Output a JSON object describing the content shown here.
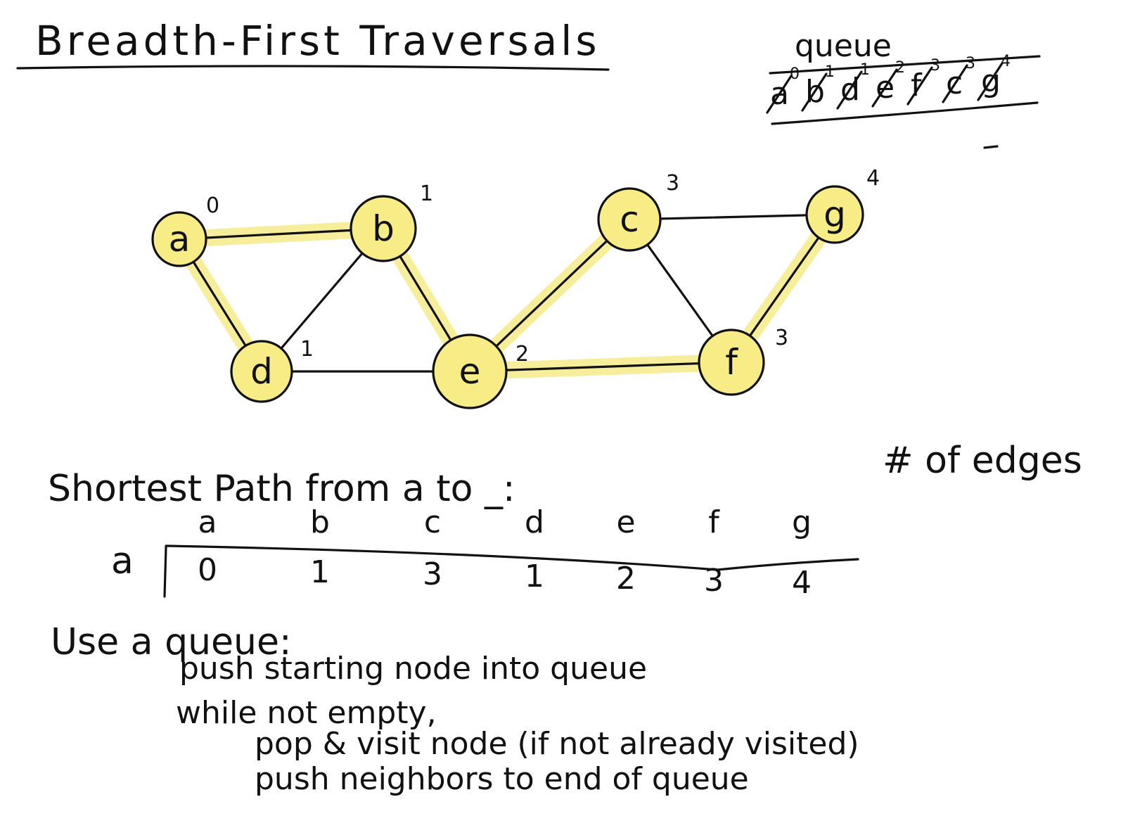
{
  "title": "Breadth-First Traversals",
  "queue": {
    "label": "queue",
    "items": [
      {
        "node": "a",
        "dist": "0"
      },
      {
        "node": "b",
        "dist": "1"
      },
      {
        "node": "d",
        "dist": "1"
      },
      {
        "node": "e",
        "dist": "2"
      },
      {
        "node": "f",
        "dist": "3"
      },
      {
        "node": "c",
        "dist": "3"
      },
      {
        "node": "g",
        "dist": "4"
      }
    ]
  },
  "graph": {
    "nodes": [
      {
        "id": "a",
        "label": "a",
        "dist": "0"
      },
      {
        "id": "b",
        "label": "b",
        "dist": "1"
      },
      {
        "id": "c",
        "label": "c",
        "dist": "3"
      },
      {
        "id": "g",
        "label": "g",
        "dist": "4"
      },
      {
        "id": "d",
        "label": "d",
        "dist": "1"
      },
      {
        "id": "e",
        "label": "e",
        "dist": "2"
      },
      {
        "id": "f",
        "label": "f",
        "dist": "3"
      }
    ],
    "edges": [
      {
        "from": "a",
        "to": "b",
        "highlighted": true
      },
      {
        "from": "a",
        "to": "d",
        "highlighted": true
      },
      {
        "from": "b",
        "to": "d",
        "highlighted": false
      },
      {
        "from": "b",
        "to": "e",
        "highlighted": true
      },
      {
        "from": "d",
        "to": "e",
        "highlighted": false
      },
      {
        "from": "e",
        "to": "c",
        "highlighted": true
      },
      {
        "from": "e",
        "to": "f",
        "highlighted": true
      },
      {
        "from": "c",
        "to": "g",
        "highlighted": false
      },
      {
        "from": "c",
        "to": "f",
        "highlighted": false
      },
      {
        "from": "f",
        "to": "g",
        "highlighted": true
      }
    ],
    "highlight_color": "#f6ee9a",
    "node_fill_color": "#f7ec86"
  },
  "shortest_path": {
    "heading": "Shortest Path from a to _:",
    "note": "# of edges",
    "row_label": "a",
    "columns": [
      "a",
      "b",
      "c",
      "d",
      "e",
      "f",
      "g"
    ],
    "values": [
      "0",
      "1",
      "3",
      "1",
      "2",
      "3",
      "4"
    ]
  },
  "algorithm": {
    "heading": "Use a queue:",
    "lines": [
      "push starting node into queue",
      "while not empty,",
      "pop & visit node (if not already visited)",
      "push neighbors to end of queue"
    ]
  }
}
